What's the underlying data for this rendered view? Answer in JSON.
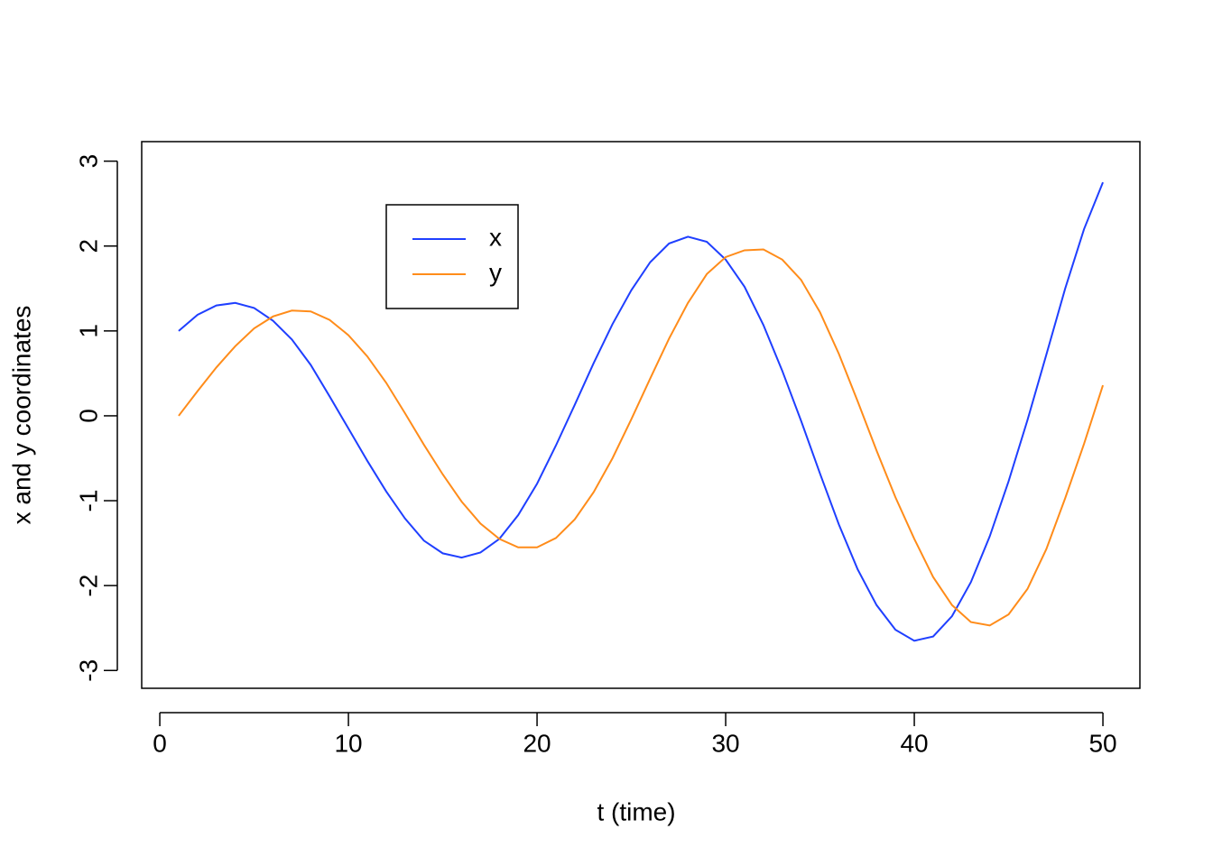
{
  "chart_data": {
    "type": "line",
    "x_label": "t (time)",
    "y_label": "x and y coordinates",
    "x": [
      1,
      2,
      3,
      4,
      5,
      6,
      7,
      8,
      9,
      10,
      11,
      12,
      13,
      14,
      15,
      16,
      17,
      18,
      19,
      20,
      21,
      22,
      23,
      24,
      25,
      26,
      27,
      28,
      29,
      30,
      31,
      32,
      33,
      34,
      35,
      36,
      37,
      38,
      39,
      40,
      41,
      42,
      43,
      44,
      45,
      46,
      47,
      48,
      49,
      50
    ],
    "series": [
      {
        "name": "x",
        "color": "#1f3fff",
        "values": [
          1.0,
          1.19,
          1.3,
          1.33,
          1.27,
          1.12,
          0.9,
          0.6,
          0.23,
          -0.15,
          -0.53,
          -0.89,
          -1.21,
          -1.47,
          -1.62,
          -1.67,
          -1.61,
          -1.45,
          -1.17,
          -0.8,
          -0.35,
          0.13,
          0.62,
          1.08,
          1.48,
          1.81,
          2.03,
          2.11,
          2.05,
          1.84,
          1.52,
          1.07,
          0.53,
          -0.06,
          -0.68,
          -1.28,
          -1.81,
          -2.23,
          -2.52,
          -2.65,
          -2.6,
          -2.36,
          -1.96,
          -1.42,
          -0.77,
          -0.05,
          0.72,
          1.5,
          2.2,
          2.75
        ]
      },
      {
        "name": "y",
        "color": "#ff8c1a",
        "values": [
          0.0,
          0.29,
          0.57,
          0.82,
          1.03,
          1.17,
          1.24,
          1.23,
          1.13,
          0.95,
          0.7,
          0.39,
          0.03,
          -0.34,
          -0.69,
          -1.01,
          -1.27,
          -1.45,
          -1.55,
          -1.55,
          -1.44,
          -1.22,
          -0.9,
          -0.5,
          -0.04,
          0.44,
          0.91,
          1.33,
          1.67,
          1.87,
          1.95,
          1.96,
          1.84,
          1.6,
          1.22,
          0.73,
          0.17,
          -0.41,
          -0.96,
          -1.45,
          -1.9,
          -2.23,
          -2.43,
          -2.47,
          -2.34,
          -2.04,
          -1.57,
          -0.97,
          -0.33,
          0.36
        ]
      }
    ],
    "xlim": [
      -0.96,
      51.96
    ],
    "xticks": [
      0,
      10,
      20,
      30,
      40,
      50
    ],
    "ylim": [
      -3.21,
      3.23
    ],
    "yticks": [
      -3,
      -2,
      -1,
      0,
      1,
      2,
      3
    ],
    "grid": false
  }
}
